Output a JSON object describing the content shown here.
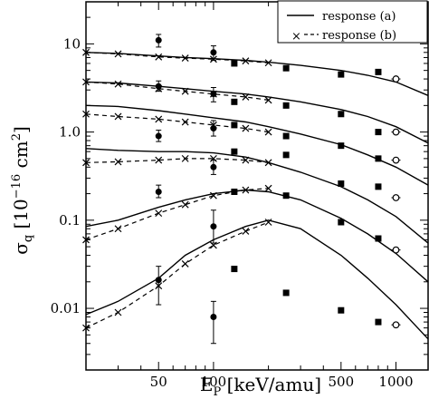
{
  "chart_data": {
    "type": "line",
    "title": "",
    "xlabel_main": "E",
    "xlabel_sub": "P",
    "xlabel_rest": " [keV/amu]",
    "ylabel_main": "σ",
    "ylabel_sub": "q",
    "ylabel_rest": " [10",
    "ylabel_exp1": "−16",
    "ylabel_cm": " cm",
    "ylabel_exp2": "2",
    "ylabel_close": "]",
    "x_scale": "log",
    "y_scale": "log",
    "xlim": [
      20,
      1500
    ],
    "ylim": [
      0.002,
      30
    ],
    "x_ticks": [
      {
        "value": 50,
        "label": "50"
      },
      {
        "value": 100,
        "label": "100"
      },
      {
        "value": 500,
        "label": "500"
      },
      {
        "value": 1000,
        "label": "1000"
      }
    ],
    "y_ticks": [
      {
        "value": 0.01,
        "label": "0.01"
      },
      {
        "value": 0.1,
        "label": "0.1"
      },
      {
        "value": 1,
        "label": "1.0"
      },
      {
        "value": 10,
        "label": "10"
      }
    ],
    "legend": {
      "position": "top-right",
      "entries": [
        {
          "label": "response (a)",
          "style": "solid"
        },
        {
          "label": "response (b)",
          "style": "dashed",
          "marker": "x"
        }
      ]
    },
    "response_a": [
      {
        "x": [
          20,
          30,
          50,
          70,
          100,
          150,
          200,
          300,
          500,
          700,
          1000,
          1500
        ],
        "y": [
          8.0,
          7.8,
          7.3,
          7.0,
          6.8,
          6.5,
          6.2,
          5.7,
          5.0,
          4.4,
          3.7,
          2.6
        ]
      },
      {
        "x": [
          20,
          30,
          50,
          70,
          100,
          150,
          200,
          300,
          500,
          700,
          1000,
          1500
        ],
        "y": [
          3.7,
          3.6,
          3.3,
          3.1,
          2.9,
          2.7,
          2.5,
          2.2,
          1.8,
          1.5,
          1.15,
          0.75
        ]
      },
      {
        "x": [
          20,
          30,
          50,
          70,
          100,
          150,
          200,
          300,
          500,
          700,
          1000,
          1500
        ],
        "y": [
          2.0,
          1.95,
          1.75,
          1.6,
          1.45,
          1.3,
          1.15,
          0.95,
          0.72,
          0.55,
          0.4,
          0.25
        ]
      },
      {
        "x": [
          20,
          30,
          50,
          70,
          100,
          150,
          200,
          300,
          500,
          700,
          1000,
          1500
        ],
        "y": [
          0.65,
          0.62,
          0.6,
          0.6,
          0.58,
          0.52,
          0.45,
          0.35,
          0.24,
          0.17,
          0.11,
          0.055
        ]
      },
      {
        "x": [
          20,
          30,
          50,
          70,
          100,
          150,
          200,
          300,
          500,
          700,
          1000,
          1500
        ],
        "y": [
          0.085,
          0.1,
          0.14,
          0.17,
          0.2,
          0.22,
          0.21,
          0.17,
          0.105,
          0.07,
          0.042,
          0.02
        ]
      },
      {
        "x": [
          20,
          30,
          50,
          70,
          100,
          150,
          200,
          300,
          500,
          700,
          1000,
          1500
        ],
        "y": [
          0.0085,
          0.012,
          0.022,
          0.04,
          0.06,
          0.085,
          0.1,
          0.08,
          0.04,
          0.022,
          0.011,
          0.0045
        ]
      }
    ],
    "response_b": [
      {
        "x": [
          20,
          30,
          50,
          70,
          100,
          150,
          200
        ],
        "y": [
          8.0,
          7.7,
          7.1,
          6.9,
          6.7,
          6.4,
          6.1
        ]
      },
      {
        "x": [
          20,
          30,
          50,
          70,
          100,
          150,
          200
        ],
        "y": [
          3.7,
          3.5,
          3.1,
          2.9,
          2.7,
          2.5,
          2.3
        ]
      },
      {
        "x": [
          20,
          30,
          50,
          70,
          100,
          150,
          200
        ],
        "y": [
          1.6,
          1.5,
          1.4,
          1.3,
          1.2,
          1.1,
          1.0
        ]
      },
      {
        "x": [
          20,
          30,
          50,
          70,
          100,
          150,
          200
        ],
        "y": [
          0.45,
          0.46,
          0.48,
          0.5,
          0.5,
          0.48,
          0.45
        ]
      },
      {
        "x": [
          20,
          30,
          50,
          70,
          100,
          150,
          200
        ],
        "y": [
          0.06,
          0.08,
          0.12,
          0.15,
          0.19,
          0.22,
          0.23
        ]
      },
      {
        "x": [
          20,
          30,
          50,
          70,
          100,
          150,
          200
        ],
        "y": [
          0.006,
          0.009,
          0.018,
          0.032,
          0.052,
          0.075,
          0.095
        ]
      }
    ],
    "experiment_circles": [
      {
        "x": 50,
        "y": 11.0,
        "err_lo": 9.2,
        "err_hi": 12.8
      },
      {
        "x": 50,
        "y": 3.3,
        "err_lo": 2.9,
        "err_hi": 3.8
      },
      {
        "x": 50,
        "y": 0.9,
        "err_lo": 0.78,
        "err_hi": 1.05
      },
      {
        "x": 50,
        "y": 0.21,
        "err_lo": 0.18,
        "err_hi": 0.25
      },
      {
        "x": 50,
        "y": 0.021,
        "err_lo": 0.011,
        "err_hi": 0.03
      },
      {
        "x": 100,
        "y": 8.0,
        "err_lo": 6.5,
        "err_hi": 9.5
      },
      {
        "x": 100,
        "y": 2.7,
        "err_lo": 2.2,
        "err_hi": 3.2
      },
      {
        "x": 100,
        "y": 1.1,
        "err_lo": 0.9,
        "err_hi": 1.35
      },
      {
        "x": 100,
        "y": 0.4,
        "err_lo": 0.33,
        "err_hi": 0.48
      },
      {
        "x": 100,
        "y": 0.085,
        "err_lo": 0.055,
        "err_hi": 0.13
      },
      {
        "x": 100,
        "y": 0.008,
        "err_lo": 0.004,
        "err_hi": 0.012
      }
    ],
    "experiment_squares": [
      {
        "x": 130,
        "y": 6.0
      },
      {
        "x": 130,
        "y": 2.2
      },
      {
        "x": 130,
        "y": 1.2
      },
      {
        "x": 130,
        "y": 0.6
      },
      {
        "x": 130,
        "y": 0.21
      },
      {
        "x": 130,
        "y": 0.028
      },
      {
        "x": 250,
        "y": 5.3
      },
      {
        "x": 250,
        "y": 2.0
      },
      {
        "x": 250,
        "y": 0.9
      },
      {
        "x": 250,
        "y": 0.55
      },
      {
        "x": 250,
        "y": 0.19
      },
      {
        "x": 250,
        "y": 0.015
      },
      {
        "x": 500,
        "y": 4.5
      },
      {
        "x": 500,
        "y": 1.6
      },
      {
        "x": 500,
        "y": 0.7
      },
      {
        "x": 500,
        "y": 0.26
      },
      {
        "x": 500,
        "y": 0.095
      },
      {
        "x": 500,
        "y": 0.0095
      },
      {
        "x": 800,
        "y": 4.8
      },
      {
        "x": 800,
        "y": 1.0
      },
      {
        "x": 800,
        "y": 0.5
      },
      {
        "x": 800,
        "y": 0.24
      },
      {
        "x": 800,
        "y": 0.062
      },
      {
        "x": 800,
        "y": 0.007
      }
    ],
    "experiment_open_circles": [
      {
        "x": 1000,
        "y": 4.0
      },
      {
        "x": 1000,
        "y": 1.0
      },
      {
        "x": 1000,
        "y": 0.48
      },
      {
        "x": 1000,
        "y": 0.18
      },
      {
        "x": 1000,
        "y": 0.046
      },
      {
        "x": 1000,
        "y": 0.0065
      }
    ]
  }
}
